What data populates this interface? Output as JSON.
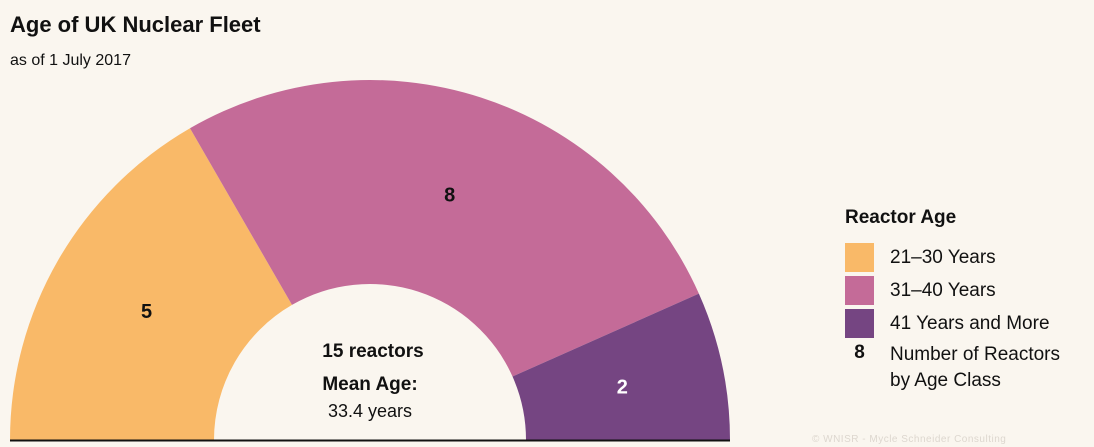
{
  "header": {
    "title": "Age of UK Nuclear Fleet",
    "subtitle": "as of 1 July 2017"
  },
  "chart_data": {
    "type": "pie",
    "subtype": "half-donut",
    "categories": [
      "21–30 Years",
      "31–40 Years",
      "41 Years and More"
    ],
    "values": [
      5,
      8,
      2
    ],
    "colors": [
      "#f9b968",
      "#c46b98",
      "#754582"
    ],
    "value_labels": [
      "5",
      "8",
      "2"
    ],
    "center": {
      "total": "15 reactors",
      "mean_label": "Mean Age:",
      "mean_value": "33.4 years"
    },
    "legend_placement": "right"
  },
  "legend": {
    "title": "Reactor Age",
    "items": [
      {
        "label": "21–30 Years",
        "color": "#f9b968"
      },
      {
        "label": "31–40 Years",
        "color": "#c46b98"
      },
      {
        "label": "41 Years and More",
        "color": "#754582"
      }
    ],
    "note_number": "8",
    "note_line1": "Number of Reactors",
    "note_line2": "by Age Class"
  },
  "credit": "© WNISR - Mycle Schneider Consulting"
}
